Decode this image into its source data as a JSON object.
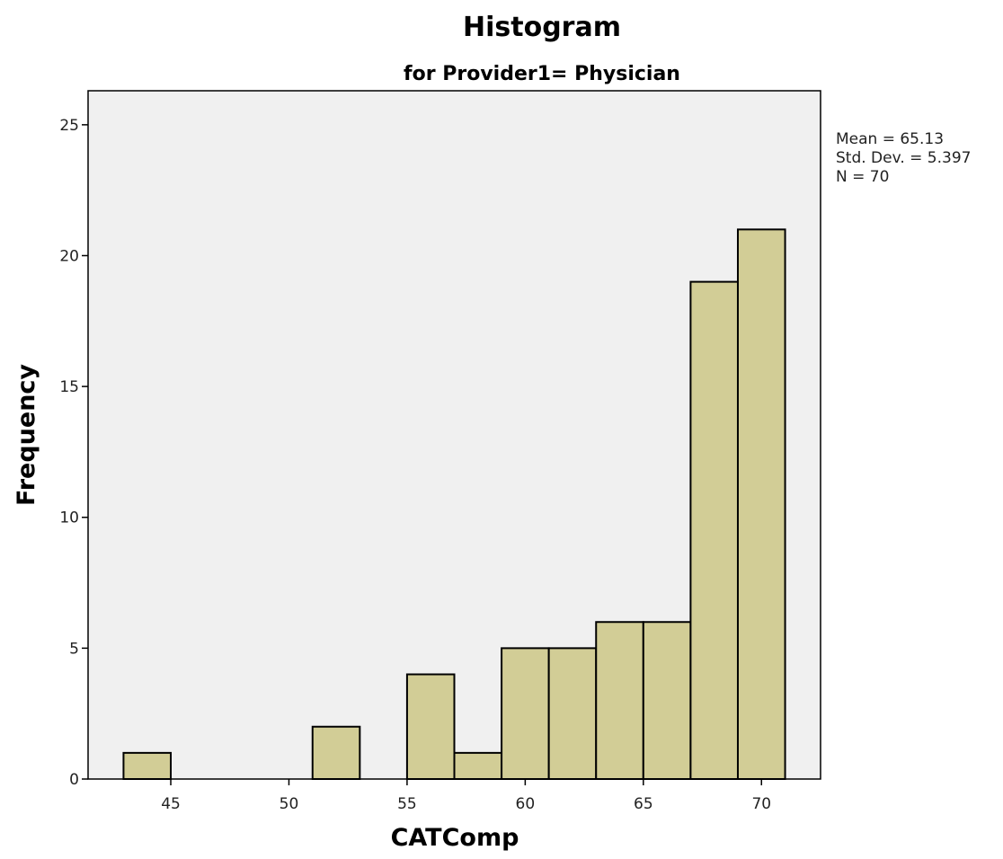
{
  "chart_data": {
    "type": "bar",
    "title": "Histogram",
    "subtitle": "for Provider1= Physician",
    "xlabel": "CATComp",
    "ylabel": "Frequency",
    "xlim": [
      41.5,
      72.5
    ],
    "ylim": [
      0,
      26.3
    ],
    "x_ticks": [
      45,
      50,
      55,
      60,
      65,
      70
    ],
    "y_ticks": [
      0,
      5,
      10,
      15,
      20,
      25
    ],
    "bin_width": 2,
    "bins": [
      {
        "start": 43,
        "end": 45,
        "count": 1
      },
      {
        "start": 45,
        "end": 47,
        "count": 0
      },
      {
        "start": 47,
        "end": 49,
        "count": 0
      },
      {
        "start": 49,
        "end": 51,
        "count": 0
      },
      {
        "start": 51,
        "end": 53,
        "count": 2
      },
      {
        "start": 53,
        "end": 55,
        "count": 0
      },
      {
        "start": 55,
        "end": 57,
        "count": 4
      },
      {
        "start": 57,
        "end": 59,
        "count": 1
      },
      {
        "start": 59,
        "end": 61,
        "count": 5
      },
      {
        "start": 61,
        "end": 63,
        "count": 5
      },
      {
        "start": 63,
        "end": 65,
        "count": 6
      },
      {
        "start": 65,
        "end": 67,
        "count": 6
      },
      {
        "start": 67,
        "end": 69,
        "count": 19
      },
      {
        "start": 69,
        "end": 71,
        "count": 21
      }
    ],
    "stats": [
      "Mean = 65.13",
      "Std. Dev. = 5.397",
      "N = 70"
    ],
    "grid": false,
    "colors": {
      "bar_fill": "#d2cd96",
      "bar_stroke": "#000000",
      "plot_background": "#f0f0f0",
      "frame": "#000000"
    }
  }
}
